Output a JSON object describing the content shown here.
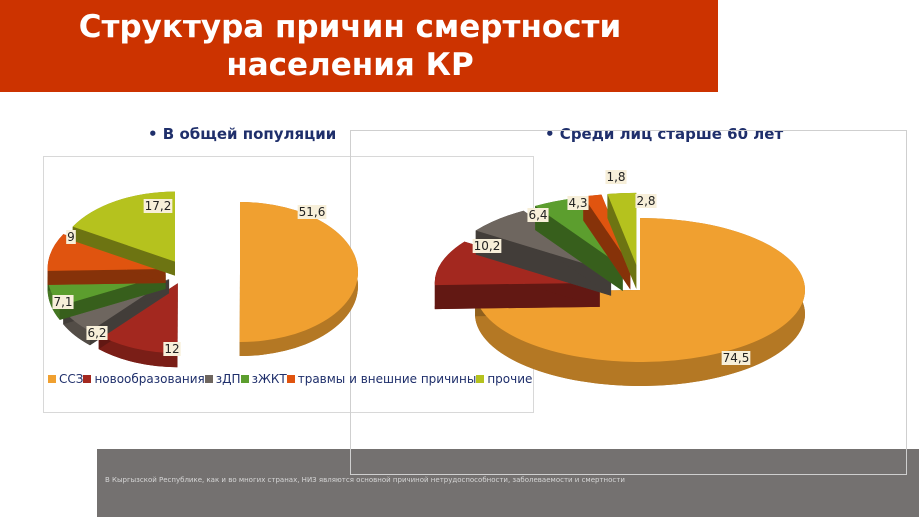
{
  "title": "Структура причин смертности\nнаселения КР",
  "subtitles": {
    "left": "•  В общей популяции",
    "right": "•  Среди лиц старше 60 лет"
  },
  "footer_text": "В Кыргызской Республике, как и во многих странах, НИЗ являются основной причиной нетрудоспособности, заболеваемости и смертности",
  "chart_data": [
    {
      "type": "pie",
      "title": "В общей популяции",
      "categories": [
        "ССЗ",
        "новообразования",
        "зДП",
        "зЖКТ",
        "травмы и внешние причины",
        "прочие"
      ],
      "values": [
        51.6,
        12,
        6.2,
        7.1,
        9,
        17.2
      ],
      "labels": [
        "51,6",
        "12",
        "6,2",
        "7,1",
        "9",
        "17,2"
      ],
      "colors": [
        "#f0a030",
        "#a3281f",
        "#6e665f",
        "#5c9e2e",
        "#e0540f",
        "#b5c21e"
      ],
      "legend": "bottom"
    },
    {
      "type": "pie",
      "title": "Среди лиц старше 60 лет",
      "categories": [
        "ССЗ",
        "новообразования",
        "зДП",
        "зЖКТ",
        "травмы и внешние причины",
        "прочие"
      ],
      "values": [
        74.5,
        10.2,
        6.4,
        4.3,
        1.8,
        2.8
      ],
      "labels": [
        "74,5",
        "10,2",
        "6,4",
        "4,3",
        "1,8",
        "2,8"
      ],
      "colors": [
        "#f0a030",
        "#a3281f",
        "#6e665f",
        "#5c9e2e",
        "#e0540f",
        "#b5c21e"
      ]
    }
  ]
}
